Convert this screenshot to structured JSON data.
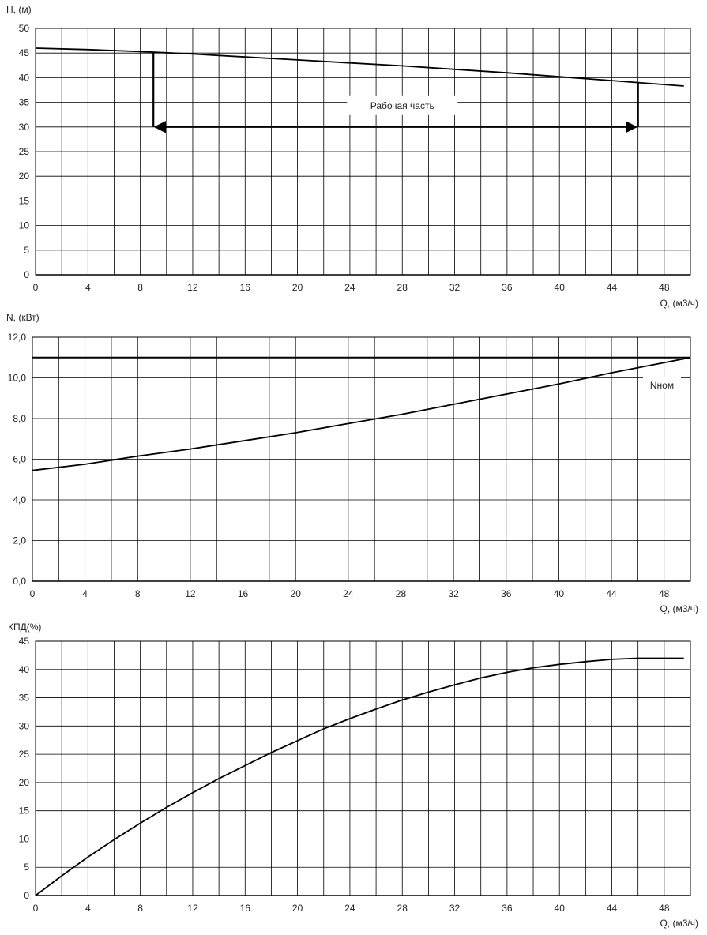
{
  "chart_data": [
    {
      "type": "line",
      "ylabel": "H, (м)",
      "xlabel": "Q, (м3/ч)",
      "xlim": [
        0,
        50
      ],
      "ylim": [
        0,
        50
      ],
      "xticks": [
        0,
        4,
        8,
        12,
        16,
        20,
        24,
        28,
        32,
        36,
        40,
        44,
        48
      ],
      "xtick_labels": [
        "0",
        "4",
        "8",
        "12",
        "16",
        "20",
        "24",
        "28",
        "32",
        "36",
        "40",
        "44",
        "48"
      ],
      "yticks": [
        0,
        5,
        10,
        15,
        20,
        25,
        30,
        35,
        40,
        45,
        50
      ],
      "ytick_labels": [
        "0",
        "5",
        "10",
        "15",
        "20",
        "25",
        "30",
        "35",
        "40",
        "45",
        "50"
      ],
      "grid": true,
      "series": [
        {
          "x": [
            0,
            4,
            8,
            12,
            16,
            20,
            24,
            28,
            32,
            36,
            40,
            44,
            48,
            49.5
          ],
          "y": [
            46,
            45.7,
            45.3,
            44.8,
            44.2,
            43.6,
            43.0,
            42.4,
            41.7,
            41.0,
            40.2,
            39.4,
            38.6,
            38.3
          ]
        }
      ],
      "operating_range": {
        "label": "Рабочая часть",
        "q_min": 9,
        "q_max": 46,
        "h_line": 30
      }
    },
    {
      "type": "line",
      "ylabel": "N, (кВт)",
      "xlabel": "Q, (м3/ч)",
      "xlim": [
        0,
        50
      ],
      "ylim": [
        0,
        12
      ],
      "xticks": [
        0,
        4,
        8,
        12,
        16,
        20,
        24,
        28,
        32,
        36,
        40,
        44,
        48
      ],
      "xtick_labels": [
        "0",
        "4",
        "8",
        "12",
        "16",
        "20",
        "24",
        "28",
        "32",
        "36",
        "40",
        "44",
        "48"
      ],
      "yticks": [
        0,
        2,
        4,
        6,
        8,
        10,
        12
      ],
      "ytick_labels": [
        "0,0",
        "2,0",
        "4,0",
        "6,0",
        "8,0",
        "10,0",
        "12,0"
      ],
      "grid": true,
      "series": [
        {
          "x": [
            0,
            4,
            8,
            12,
            16,
            20,
            24,
            28,
            32,
            36,
            40,
            44,
            48,
            50
          ],
          "y": [
            5.45,
            5.75,
            6.15,
            6.5,
            6.9,
            7.3,
            7.75,
            8.2,
            8.7,
            9.2,
            9.7,
            10.25,
            10.75,
            11.0
          ]
        }
      ],
      "hline": {
        "label": "Nном",
        "value": 11.0
      }
    },
    {
      "type": "line",
      "ylabel": "КПД(%)",
      "xlabel": "Q, (м3/ч)",
      "xlim": [
        0,
        50
      ],
      "ylim": [
        0,
        45
      ],
      "xticks": [
        0,
        4,
        8,
        12,
        16,
        20,
        24,
        28,
        32,
        36,
        40,
        44,
        48
      ],
      "xtick_labels": [
        "0",
        "4",
        "8",
        "12",
        "16",
        "20",
        "24",
        "28",
        "32",
        "36",
        "40",
        "44",
        "48"
      ],
      "yticks": [
        0,
        5,
        10,
        15,
        20,
        25,
        30,
        35,
        40,
        45
      ],
      "ytick_labels": [
        "0",
        "5",
        "10",
        "15",
        "20",
        "25",
        "30",
        "35",
        "40",
        "45"
      ],
      "grid": true,
      "series": [
        {
          "x": [
            0,
            2,
            4,
            6,
            8,
            10,
            12,
            14,
            16,
            18,
            20,
            22,
            24,
            26,
            28,
            30,
            32,
            34,
            36,
            38,
            40,
            42,
            44,
            46,
            48,
            49.5
          ],
          "y": [
            0,
            3.5,
            6.8,
            9.9,
            12.8,
            15.6,
            18.2,
            20.7,
            23.0,
            25.3,
            27.4,
            29.5,
            31.3,
            33.0,
            34.6,
            36.0,
            37.3,
            38.5,
            39.5,
            40.3,
            40.9,
            41.4,
            41.8,
            42.0,
            42.0,
            42.0
          ]
        }
      ]
    }
  ]
}
